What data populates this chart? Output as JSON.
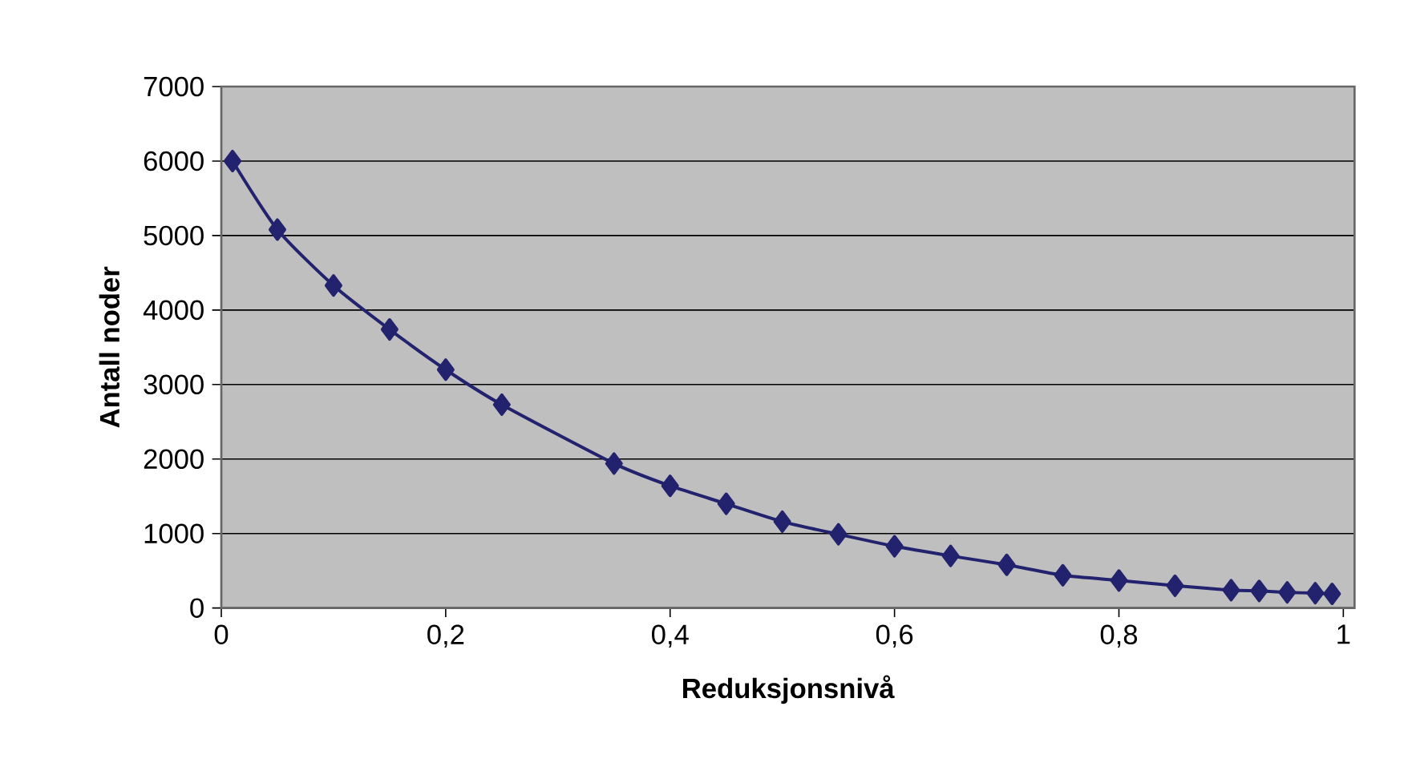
{
  "chart_data": {
    "type": "line",
    "xlabel": "Reduksjonsnivå",
    "ylabel": "Antall noder",
    "x": [
      0.01,
      0.05,
      0.1,
      0.15,
      0.2,
      0.25,
      0.35,
      0.4,
      0.45,
      0.5,
      0.55,
      0.6,
      0.65,
      0.7,
      0.75,
      0.8,
      0.85,
      0.9,
      0.925,
      0.95,
      0.975,
      0.99
    ],
    "series": [
      {
        "color": "#22226e",
        "values": [
          6000,
          5080,
          4330,
          3740,
          3200,
          2730,
          1940,
          1640,
          1400,
          1160,
          990,
          830,
          700,
          580,
          440,
          370,
          300,
          240,
          230,
          210,
          200,
          190
        ]
      }
    ],
    "xlim": [
      0,
      1.01
    ],
    "ylim": [
      0,
      7000
    ],
    "xticks": [
      0,
      {
        "value": 0.2,
        "label": "0,2"
      },
      {
        "value": 0.4,
        "label": "0,4"
      },
      {
        "value": 0.6,
        "label": "0,6"
      },
      {
        "value": 0.8,
        "label": "0,8"
      },
      1
    ],
    "yticks": [
      0,
      1000,
      2000,
      3000,
      4000,
      5000,
      6000,
      7000
    ],
    "grid": "y",
    "marker": "diamond",
    "line_style": "solid"
  }
}
